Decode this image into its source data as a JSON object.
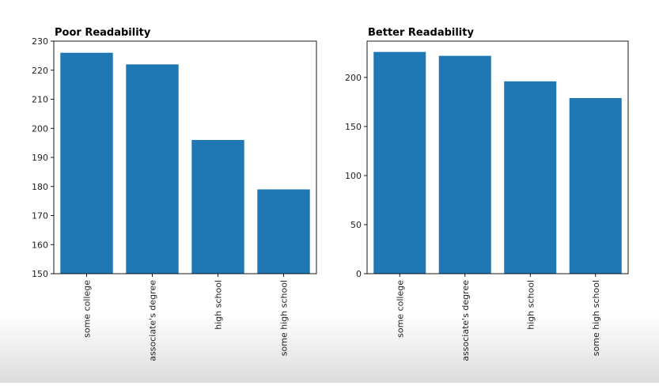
{
  "chart_data": [
    {
      "type": "bar",
      "title": "Poor Readability",
      "categories": [
        "some college",
        "associate's degree",
        "high school",
        "some high school"
      ],
      "values": [
        226,
        222,
        196,
        179
      ],
      "ylim": [
        150,
        230
      ],
      "yticks": [
        150,
        160,
        170,
        180,
        190,
        200,
        210,
        220,
        230
      ],
      "xlabel": "",
      "ylabel": "",
      "color": "#1f77b4",
      "grid": false
    },
    {
      "type": "bar",
      "title": "Better Readability",
      "categories": [
        "some college",
        "associate's degree",
        "high school",
        "some high school"
      ],
      "values": [
        226,
        222,
        196,
        179
      ],
      "ylim": [
        0,
        237
      ],
      "yticks": [
        0,
        50,
        100,
        150,
        200
      ],
      "xlabel": "",
      "ylabel": "",
      "color": "#1f77b4",
      "grid": false
    }
  ]
}
